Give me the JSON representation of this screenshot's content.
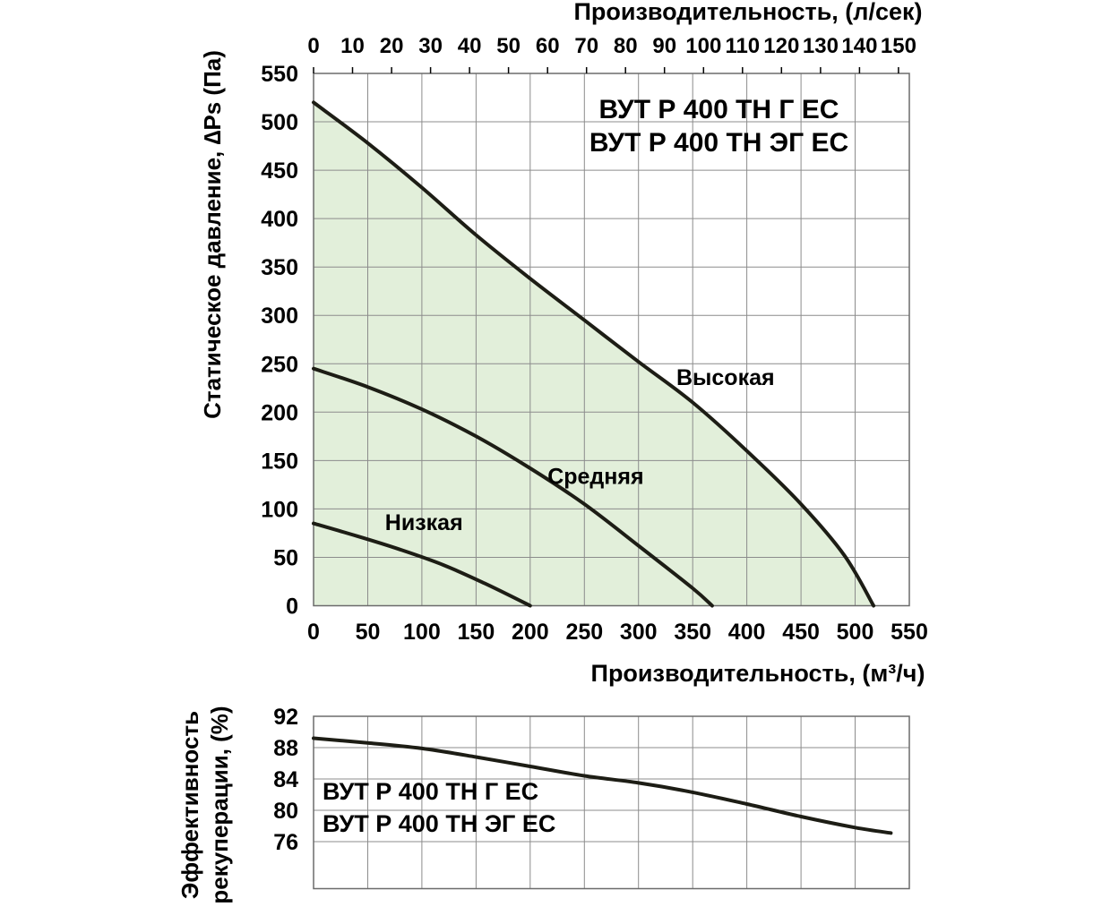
{
  "page": {
    "background": "#ffffff"
  },
  "chart_data": [
    {
      "type": "line",
      "title_lines": [
        "ВУТ Р 400 ТН Г ЕС",
        "ВУТ Р 400 ТН ЭГ ЕС"
      ],
      "top_axis": {
        "label": "Производительность, (л/сек)",
        "ticks": [
          0,
          10,
          20,
          30,
          40,
          50,
          60,
          70,
          80,
          90,
          100,
          110,
          120,
          130,
          140,
          150
        ],
        "unit_to_m3h": 3.6
      },
      "bottom_axis": {
        "label": "Производительность, (м³/ч)",
        "ticks": [
          0,
          50,
          100,
          150,
          200,
          250,
          300,
          350,
          400,
          450,
          500,
          550
        ]
      },
      "y_axis": {
        "label": "Статическое давление, ∆Ps (Па)",
        "ticks": [
          0,
          50,
          100,
          150,
          200,
          250,
          300,
          350,
          400,
          450,
          500,
          550
        ]
      },
      "xlim": [
        0,
        550
      ],
      "ylim": [
        0,
        550
      ],
      "grid": true,
      "grid_step": 50,
      "colors": {
        "fill": "#e2efda",
        "line": "#1d1d15",
        "grid": "#8c8c8c",
        "frame": "#6b6b6b",
        "text": "#000000"
      },
      "series": [
        {
          "name": "Высокая",
          "fill_under": true,
          "label_at": [
            335,
            228
          ],
          "points": [
            [
              0,
              520
            ],
            [
              50,
              478
            ],
            [
              100,
              432
            ],
            [
              150,
              383
            ],
            [
              200,
              338
            ],
            [
              250,
              295
            ],
            [
              300,
              252
            ],
            [
              350,
              210
            ],
            [
              400,
              160
            ],
            [
              450,
              105
            ],
            [
              490,
              52
            ],
            [
              517,
              0
            ]
          ]
        },
        {
          "name": "Средняя",
          "fill_under": false,
          "label_at": [
            216,
            126
          ],
          "points": [
            [
              0,
              245
            ],
            [
              50,
              226
            ],
            [
              100,
              203
            ],
            [
              150,
              175
            ],
            [
              200,
              142
            ],
            [
              250,
              105
            ],
            [
              300,
              62
            ],
            [
              350,
              18
            ],
            [
              368,
              0
            ]
          ]
        },
        {
          "name": "Низкая",
          "fill_under": false,
          "label_at": [
            66,
            78
          ],
          "points": [
            [
              0,
              85
            ],
            [
              40,
              72
            ],
            [
              80,
              58
            ],
            [
              120,
              42
            ],
            [
              160,
              22
            ],
            [
              200,
              0
            ]
          ]
        }
      ]
    },
    {
      "type": "line",
      "annotation_lines": [
        "ВУТ Р 400 ТН Г ЕС",
        "ВУТ Р 400 ТН ЭГ ЕС"
      ],
      "y_axis": {
        "label_lines": [
          "Эффективность",
          "рекуперации, (%)"
        ],
        "ticks": [
          76,
          80,
          84,
          88,
          92
        ]
      },
      "xlim": [
        0,
        550
      ],
      "ylim": [
        70,
        92
      ],
      "grid": true,
      "x_grid_step": 50,
      "colors": {
        "line": "#1d1d15",
        "grid": "#8c8c8c",
        "frame": "#6b6b6b",
        "text": "#000000"
      },
      "series": [
        {
          "name": "Эффективность рекуперации",
          "points": [
            [
              0,
              89.2
            ],
            [
              50,
              88.6
            ],
            [
              100,
              87.9
            ],
            [
              150,
              86.8
            ],
            [
              200,
              85.6
            ],
            [
              250,
              84.4
            ],
            [
              300,
              83.5
            ],
            [
              350,
              82.3
            ],
            [
              400,
              80.8
            ],
            [
              450,
              79.2
            ],
            [
              500,
              77.8
            ],
            [
              533,
              77.1
            ]
          ]
        }
      ]
    }
  ]
}
